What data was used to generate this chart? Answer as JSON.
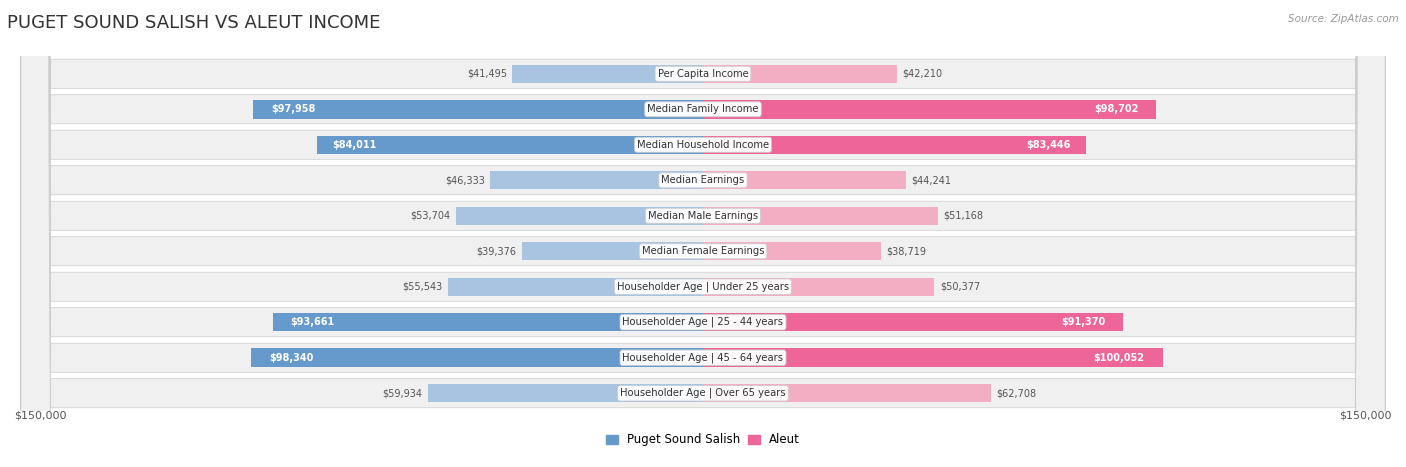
{
  "title": "PUGET SOUND SALISH VS ALEUT INCOME",
  "source": "Source: ZipAtlas.com",
  "categories": [
    "Per Capita Income",
    "Median Family Income",
    "Median Household Income",
    "Median Earnings",
    "Median Male Earnings",
    "Median Female Earnings",
    "Householder Age | Under 25 years",
    "Householder Age | 25 - 44 years",
    "Householder Age | 45 - 64 years",
    "Householder Age | Over 65 years"
  ],
  "left_values": [
    41495,
    97958,
    84011,
    46333,
    53704,
    39376,
    55543,
    93661,
    98340,
    59934
  ],
  "right_values": [
    42210,
    98702,
    83446,
    44241,
    51168,
    38719,
    50377,
    91370,
    100052,
    62708
  ],
  "left_labels": [
    "$41,495",
    "$97,958",
    "$84,011",
    "$46,333",
    "$53,704",
    "$39,376",
    "$55,543",
    "$93,661",
    "$98,340",
    "$59,934"
  ],
  "right_labels": [
    "$42,210",
    "$98,702",
    "$83,446",
    "$44,241",
    "$51,168",
    "$38,719",
    "$50,377",
    "$91,370",
    "$100,052",
    "$62,708"
  ],
  "left_label_inside": [
    false,
    true,
    true,
    false,
    false,
    false,
    false,
    true,
    true,
    false
  ],
  "right_label_inside": [
    false,
    true,
    true,
    false,
    false,
    false,
    false,
    true,
    true,
    false
  ],
  "max_value": 150000,
  "left_color_light": "#a8c4e0",
  "left_color_strong": "#6699cc",
  "right_color_light": "#f4aec4",
  "right_color_strong": "#ee6699",
  "row_bg_color": "#eeeeee",
  "title_fontsize": 13,
  "legend_label_left": "Puget Sound Salish",
  "legend_label_right": "Aleut",
  "axis_label_left": "$150,000",
  "axis_label_right": "$150,000",
  "threshold_inside": 65000
}
